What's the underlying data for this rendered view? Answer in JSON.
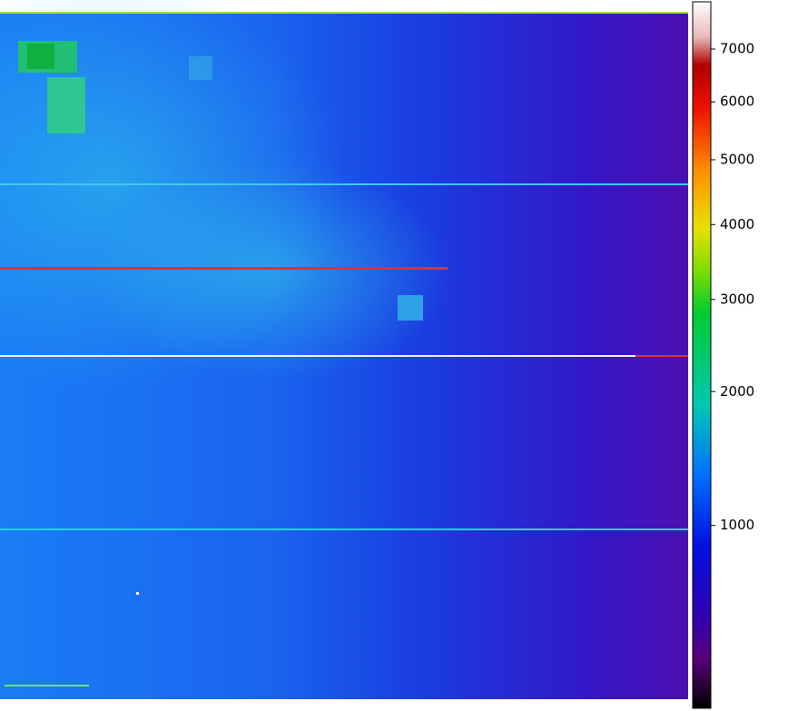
{
  "colorbar": {
    "scale": "sqrt",
    "clim": [
      500,
      7965
    ],
    "ticks": [
      1000,
      2000,
      3000,
      4000,
      5000,
      6000,
      7000
    ]
  }
}
